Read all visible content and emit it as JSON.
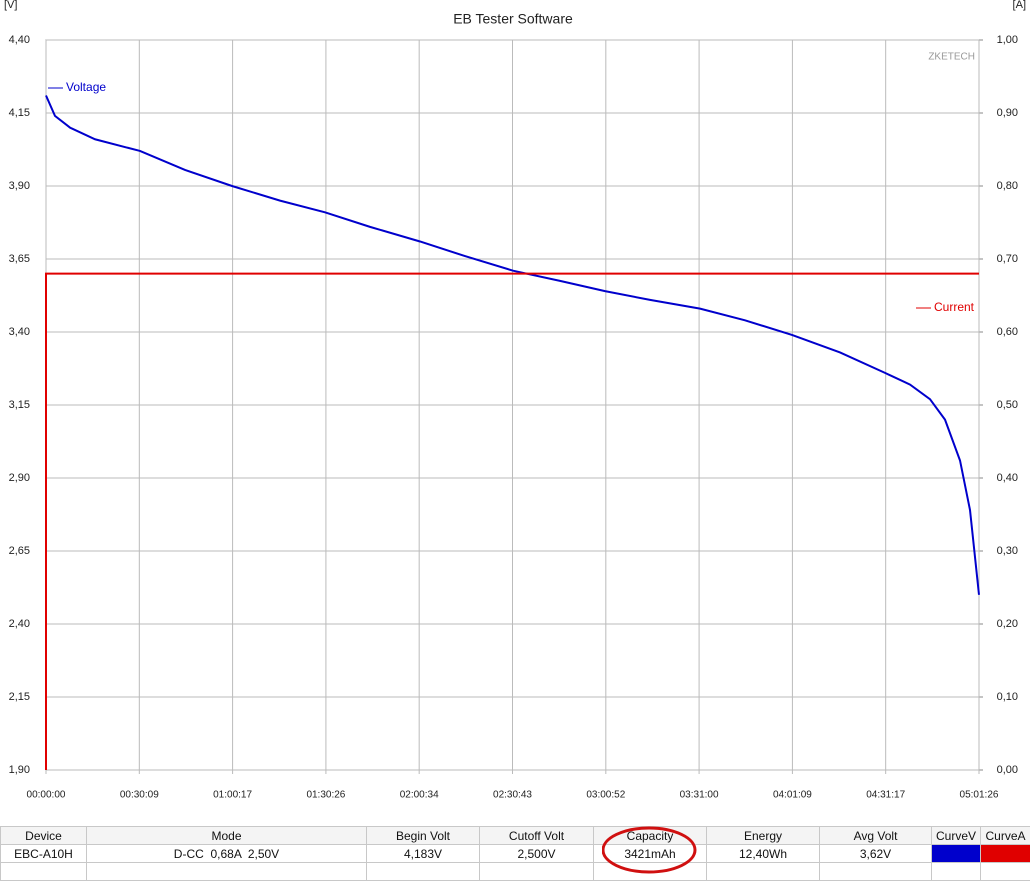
{
  "chart_data": {
    "type": "line",
    "title": "EB Tester Software",
    "ylabel": "[V]",
    "y2label": "[A]",
    "annotation": "ZKETECH",
    "xlim": [
      0,
      18086
    ],
    "xticks": [
      {
        "value": 0,
        "label": "00:00:00"
      },
      {
        "value": 1809,
        "label": "00:30:09"
      },
      {
        "value": 3617,
        "label": "01:00:17"
      },
      {
        "value": 5426,
        "label": "01:30:26"
      },
      {
        "value": 7234,
        "label": "02:00:34"
      },
      {
        "value": 9043,
        "label": "02:30:43"
      },
      {
        "value": 10852,
        "label": "03:00:52"
      },
      {
        "value": 12660,
        "label": "03:31:00"
      },
      {
        "value": 14469,
        "label": "04:01:09"
      },
      {
        "value": 16277,
        "label": "04:31:17"
      },
      {
        "value": 18086,
        "label": "05:01:26"
      }
    ],
    "ylim": [
      1.9,
      4.4
    ],
    "yticks": [
      {
        "value": 1.9,
        "label": "1,90"
      },
      {
        "value": 2.15,
        "label": "2,15"
      },
      {
        "value": 2.4,
        "label": "2,40"
      },
      {
        "value": 2.65,
        "label": "2,65"
      },
      {
        "value": 2.9,
        "label": "2,90"
      },
      {
        "value": 3.15,
        "label": "3,15"
      },
      {
        "value": 3.4,
        "label": "3,40"
      },
      {
        "value": 3.65,
        "label": "3,65"
      },
      {
        "value": 3.9,
        "label": "3,90"
      },
      {
        "value": 4.15,
        "label": "4,15"
      },
      {
        "value": 4.4,
        "label": "4,40"
      }
    ],
    "y2lim": [
      0,
      1
    ],
    "y2ticks": [
      {
        "value": 0,
        "label": "0,00"
      },
      {
        "value": 0.1,
        "label": "0,10"
      },
      {
        "value": 0.2,
        "label": "0,20"
      },
      {
        "value": 0.3,
        "label": "0,30"
      },
      {
        "value": 0.4,
        "label": "0,40"
      },
      {
        "value": 0.5,
        "label": "0,50"
      },
      {
        "value": 0.6,
        "label": "0,60"
      },
      {
        "value": 0.7,
        "label": "0,70"
      },
      {
        "value": 0.8,
        "label": "0,80"
      },
      {
        "value": 0.9,
        "label": "0,90"
      },
      {
        "value": 1,
        "label": "1,00"
      }
    ],
    "grid": true,
    "series": [
      {
        "name": "Voltage",
        "color": "#0000cc",
        "x": [
          0,
          174,
          465,
          950,
          1822,
          2695,
          3606,
          4536,
          5408,
          6281,
          7250,
          8122,
          9053,
          9964,
          10836,
          11709,
          12678,
          13550,
          14461,
          15392,
          16264,
          16749,
          17136,
          17427,
          17718,
          17912,
          18086
        ],
        "values": [
          4.21,
          4.14,
          4.1,
          4.06,
          4.02,
          3.955,
          3.9,
          3.85,
          3.81,
          3.76,
          3.71,
          3.66,
          3.61,
          3.575,
          3.54,
          3.51,
          3.48,
          3.44,
          3.39,
          3.33,
          3.26,
          3.22,
          3.17,
          3.1,
          2.96,
          2.79,
          2.5
        ]
      },
      {
        "name": "Current",
        "color": "#e00000",
        "axis": "y2",
        "x": [
          0,
          0,
          18086
        ],
        "values": [
          0,
          0.68,
          0.68
        ]
      }
    ]
  },
  "table": {
    "columns": [
      "Device",
      "Mode",
      "Begin Volt",
      "Cutoff Volt",
      "Capacity",
      "Energy",
      "Avg Volt",
      "CurveV",
      "CurveA"
    ],
    "rows": [
      [
        "EBC-A10H",
        "D-CC  0,68A  2,50V",
        "4,183V",
        "2,500V",
        "3421mAh",
        "12,40Wh",
        "3,62V"
      ]
    ]
  }
}
